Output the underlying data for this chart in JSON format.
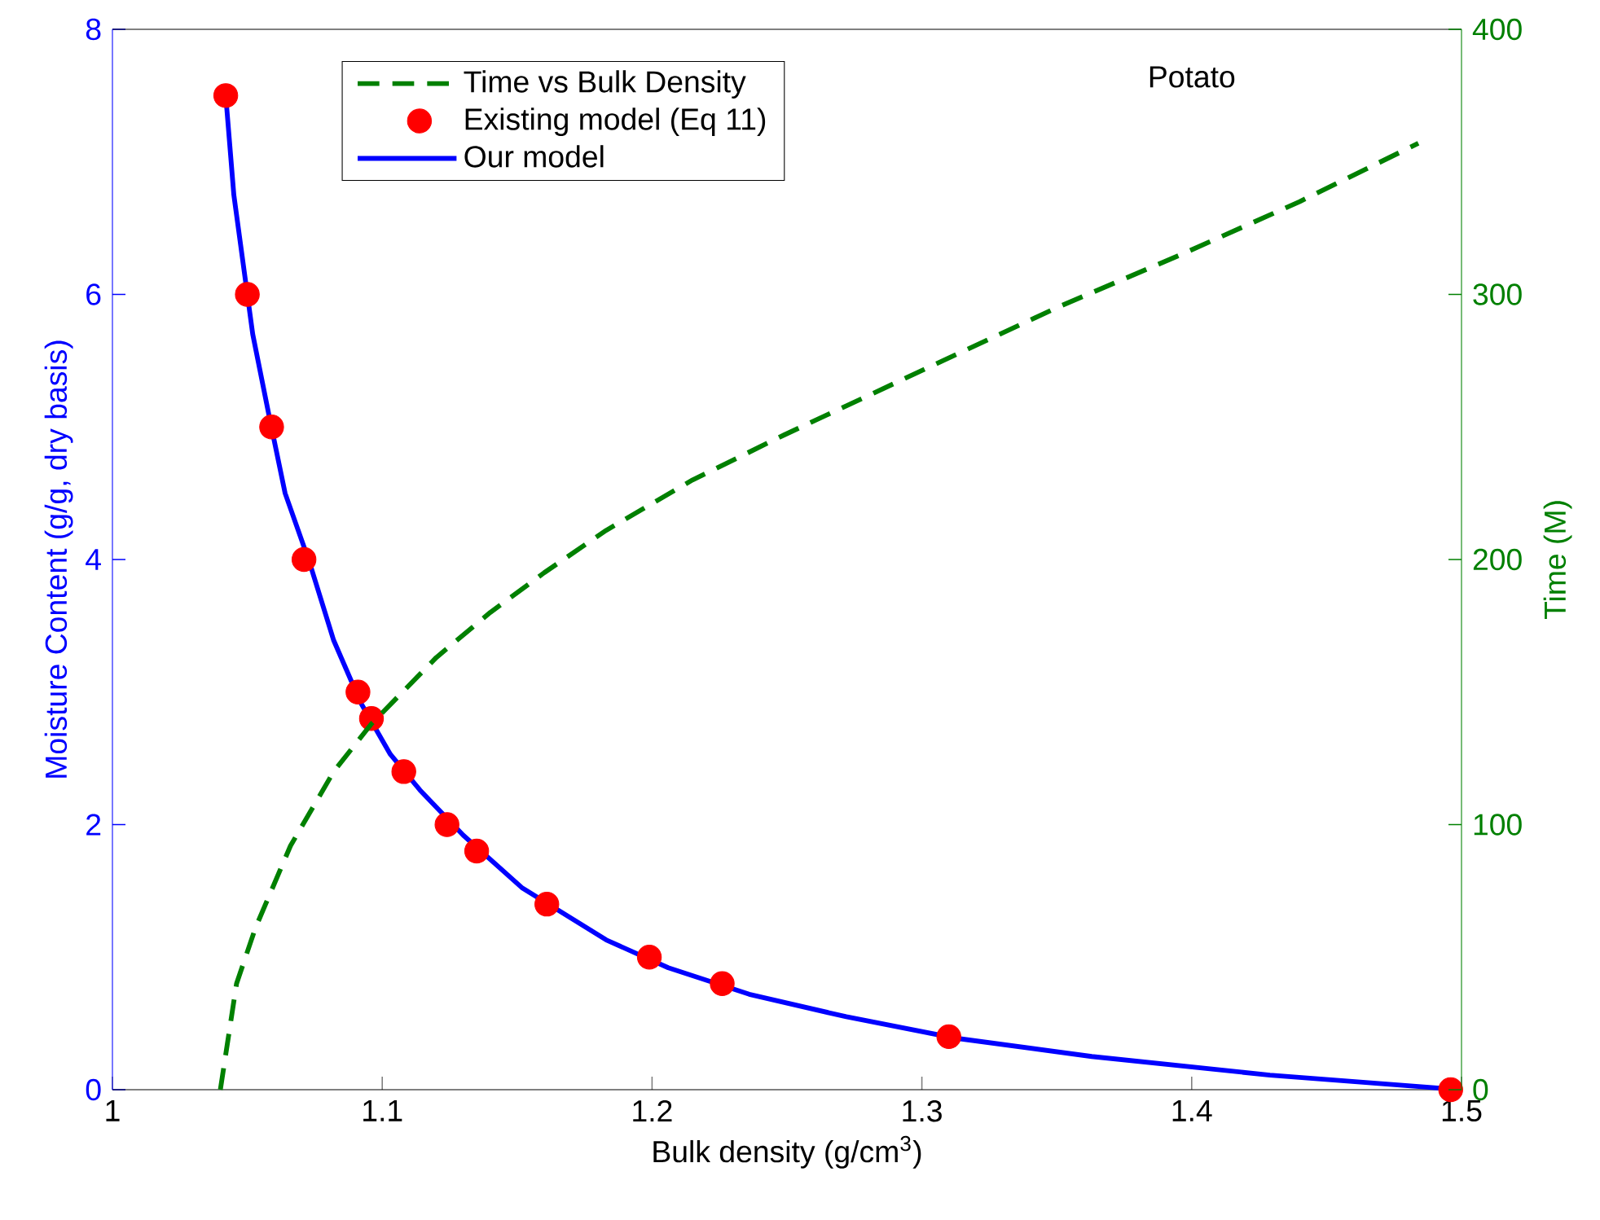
{
  "chart_data": {
    "type": "line",
    "xlabel": "Bulk density (g/cm$^{3}$)",
    "ylabel": "Moisture Content (g/g, dry basis)",
    "y2label": "Time (M)",
    "xlim": [
      1,
      1.5
    ],
    "xticks": [
      1,
      1.1,
      1.2,
      1.3,
      1.4,
      1.5
    ],
    "ylim": [
      0,
      8
    ],
    "yticks": [
      0,
      2,
      4,
      6,
      8
    ],
    "y2lim": [
      0,
      400
    ],
    "y2ticks": [
      0,
      100,
      200,
      300,
      400
    ],
    "legend": "top",
    "grid": false,
    "annotations": [
      "Potato"
    ],
    "series": [
      {
        "name": "Time vs Bulk Density",
        "type": "line",
        "axis": "y2",
        "color": "#008000",
        "line_style": "dashed",
        "marker": "none",
        "x": [
          1.04,
          1.046,
          1.053,
          1.066,
          1.082,
          1.096,
          1.12,
          1.14,
          1.16,
          1.183,
          1.215,
          1.249,
          1.312,
          1.35,
          1.396,
          1.44,
          1.484
        ],
        "values": [
          0,
          40,
          61,
          92,
          120,
          138,
          163,
          180,
          195,
          211,
          230,
          247,
          277,
          295,
          315,
          335,
          357
        ]
      },
      {
        "name": "Existing model (Eq 11)",
        "type": "scatter",
        "color": "#ff0000",
        "marker": "circle",
        "x": [
          1.042,
          1.05,
          1.059,
          1.071,
          1.091,
          1.096,
          1.108,
          1.124,
          1.135,
          1.161,
          1.199,
          1.226,
          1.31,
          1.496
        ],
        "values": [
          7.5,
          6.0,
          5.0,
          4.0,
          3.0,
          2.8,
          2.4,
          2.0,
          1.8,
          1.4,
          1.0,
          0.8,
          0.4,
          0
        ]
      },
      {
        "name": "Our model",
        "type": "line",
        "color": "#0000ff",
        "line_style": "solid",
        "marker": "none",
        "x": [
          1.042,
          1.045,
          1.052,
          1.058,
          1.064,
          1.073,
          1.082,
          1.092,
          1.103,
          1.114,
          1.13,
          1.152,
          1.183,
          1.206,
          1.236,
          1.272,
          1.312,
          1.363,
          1.429,
          1.493
        ],
        "values": [
          7.5,
          6.75,
          5.7,
          5.09,
          4.5,
          3.98,
          3.39,
          2.92,
          2.53,
          2.26,
          1.92,
          1.52,
          1.13,
          0.92,
          0.72,
          0.55,
          0.39,
          0.25,
          0.11,
          0.01
        ]
      }
    ]
  }
}
